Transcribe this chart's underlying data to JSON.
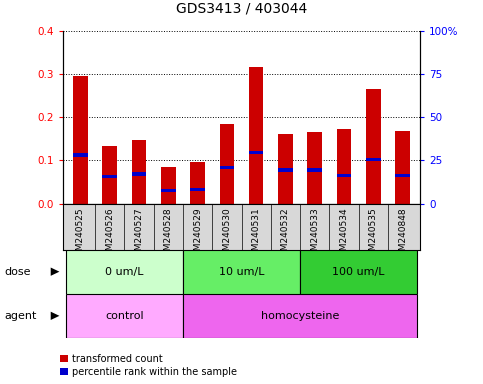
{
  "title": "GDS3413 / 403044",
  "samples": [
    "GSM240525",
    "GSM240526",
    "GSM240527",
    "GSM240528",
    "GSM240529",
    "GSM240530",
    "GSM240531",
    "GSM240532",
    "GSM240533",
    "GSM240534",
    "GSM240535",
    "GSM240848"
  ],
  "transformed_count": [
    0.296,
    0.132,
    0.148,
    0.085,
    0.097,
    0.184,
    0.317,
    0.16,
    0.165,
    0.173,
    0.265,
    0.167
  ],
  "percentile_rank": [
    0.112,
    0.063,
    0.068,
    0.03,
    0.033,
    0.083,
    0.118,
    0.078,
    0.078,
    0.065,
    0.102,
    0.065
  ],
  "ylim_left": [
    0,
    0.4
  ],
  "ylim_right": [
    0,
    100
  ],
  "yticks_left": [
    0,
    0.1,
    0.2,
    0.3,
    0.4
  ],
  "yticks_right": [
    0,
    25,
    50,
    75,
    100
  ],
  "ytick_labels_right": [
    "0",
    "25",
    "50",
    "75",
    "100%"
  ],
  "dose_groups": [
    {
      "label": "0 um/L",
      "start": 0,
      "end": 3,
      "color": "#ccffcc"
    },
    {
      "label": "10 um/L",
      "start": 4,
      "end": 7,
      "color": "#66ee66"
    },
    {
      "label": "100 um/L",
      "start": 8,
      "end": 11,
      "color": "#33cc33"
    }
  ],
  "agent_groups": [
    {
      "label": "control",
      "start": 0,
      "end": 3,
      "color": "#ffaaff"
    },
    {
      "label": "homocysteine",
      "start": 4,
      "end": 11,
      "color": "#ee66ee"
    }
  ],
  "bar_color": "#cc0000",
  "percentile_color": "#0000cc",
  "grid_color": "black",
  "sample_bg_color": "#d8d8d8",
  "plot_bg": "white",
  "bar_width": 0.5,
  "legend_items": [
    {
      "label": "transformed count",
      "color": "#cc0000"
    },
    {
      "label": "percentile rank within the sample",
      "color": "#0000cc"
    }
  ]
}
